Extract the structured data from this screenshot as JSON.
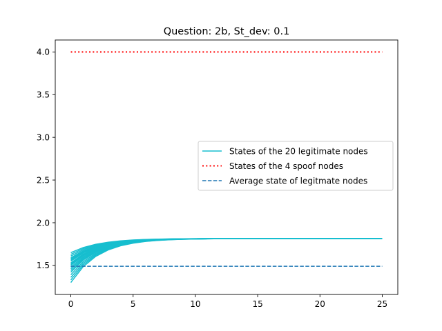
{
  "chart_data": {
    "type": "line",
    "title": "Question: 2b, St_dev: 0.1",
    "xlabel": "",
    "ylabel": "",
    "xlim": [
      -1.25,
      26.25
    ],
    "ylim": [
      1.16,
      4.14
    ],
    "x_ticks": [
      0,
      5,
      10,
      15,
      20,
      25
    ],
    "y_ticks": [
      1.5,
      2.0,
      2.5,
      3.0,
      3.5,
      4.0
    ],
    "x_tick_labels": [
      "0",
      "5",
      "10",
      "15",
      "20",
      "25"
    ],
    "y_tick_labels": [
      "1.5",
      "2.0",
      "2.5",
      "3.0",
      "3.5",
      "4.0"
    ],
    "grid": false,
    "legend_position": "center-right",
    "legitimate": {
      "color": "#17becf",
      "count": 20,
      "final_value": 1.815,
      "initial_values": [
        1.3,
        1.33,
        1.36,
        1.39,
        1.42,
        1.44,
        1.46,
        1.48,
        1.5,
        1.51,
        1.52,
        1.53,
        1.55,
        1.56,
        1.57,
        1.58,
        1.59,
        1.61,
        1.63,
        1.65
      ],
      "x": [
        0,
        1,
        2,
        3,
        4,
        5,
        6,
        7,
        8,
        9,
        10,
        11,
        12,
        13,
        14,
        15,
        16,
        17,
        18,
        19,
        20,
        21,
        22,
        23,
        24,
        25
      ]
    },
    "series": [
      {
        "name": "States of the 20 legitimate nodes",
        "style": "solid",
        "color": "#17becf"
      },
      {
        "name": "States of the 4 spoof nodes",
        "style": "dotted",
        "color": "#ff0000",
        "x": [
          0,
          25
        ],
        "values": [
          4.0,
          4.0
        ]
      },
      {
        "name": "Average state of legitmate nodes",
        "style": "dashed",
        "color": "#1f77b4",
        "x": [
          0,
          25
        ],
        "values": [
          1.49,
          1.49
        ]
      }
    ]
  }
}
